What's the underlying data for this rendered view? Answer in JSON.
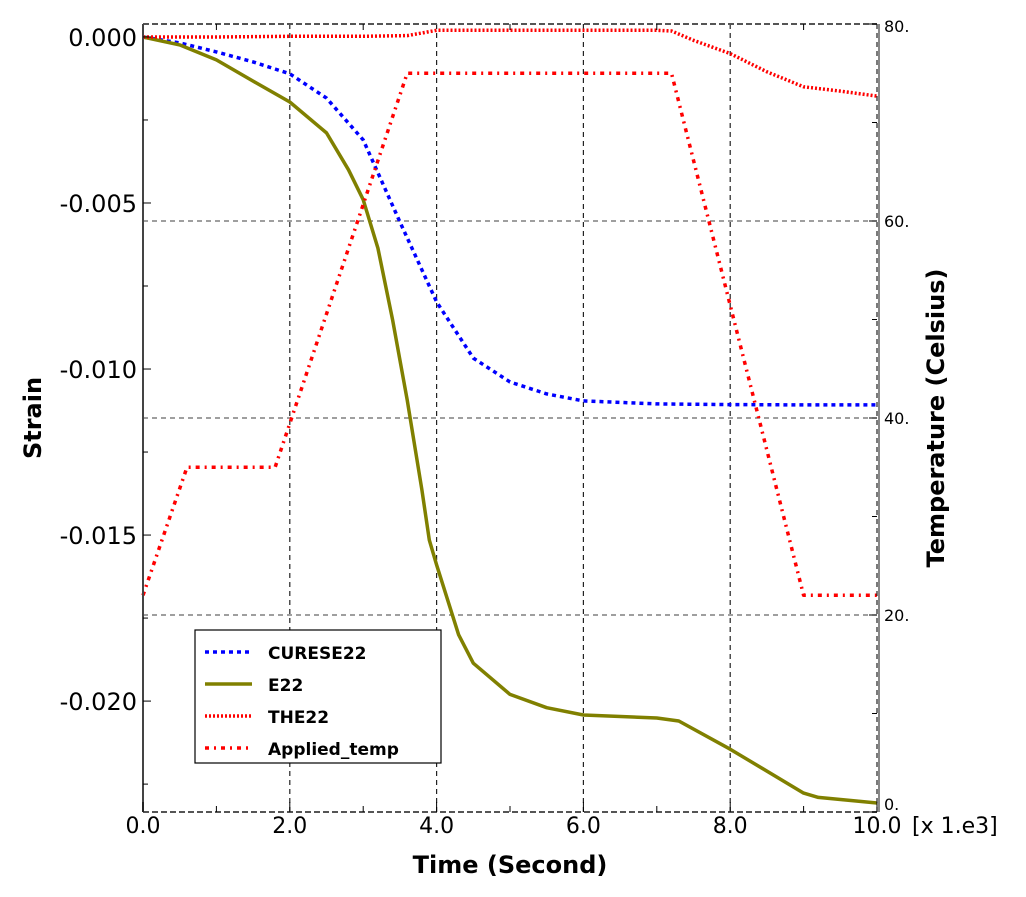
{
  "chart_data": {
    "type": "line",
    "title": "",
    "xlabel": "Time (Second)",
    "x_multiplier_label": "[x 1.e3]",
    "ylabel": "Strain",
    "y2label": "Temperature (Celsius)",
    "xlim": [
      0,
      10
    ],
    "ylim": [
      -0.02334,
      0.00039
    ],
    "y2lim": [
      0,
      80
    ],
    "grid": true,
    "legend_position": "bottom-left",
    "x_ticks": [
      {
        "value": 0,
        "label": "0.0"
      },
      {
        "value": 2,
        "label": "2.0"
      },
      {
        "value": 4,
        "label": "4.0"
      },
      {
        "value": 6,
        "label": "6.0"
      },
      {
        "value": 8,
        "label": "8.0"
      },
      {
        "value": 10,
        "label": "10.0"
      }
    ],
    "y_ticks": [
      {
        "value": 0.0,
        "label": "0.000"
      },
      {
        "value": -0.005,
        "label": "-0.005"
      },
      {
        "value": -0.01,
        "label": "-0.010"
      },
      {
        "value": -0.015,
        "label": "-0.015"
      },
      {
        "value": -0.02,
        "label": "-0.020"
      }
    ],
    "y2_ticks": [
      {
        "value": 0,
        "label": "0."
      },
      {
        "value": 20,
        "label": "20."
      },
      {
        "value": 40,
        "label": "40."
      },
      {
        "value": 60,
        "label": "60."
      },
      {
        "value": 80,
        "label": "80."
      }
    ],
    "series": [
      {
        "name": "CURESE22",
        "axis": "left",
        "color": "#0000ff",
        "style": "dotted",
        "x": [
          0,
          0.5,
          1.0,
          1.5,
          2.0,
          2.5,
          3.0,
          3.5,
          4.0,
          4.5,
          5.0,
          5.5,
          6.0,
          7.0,
          8.0,
          9.0,
          10.0
        ],
        "values": [
          0,
          -0.00018,
          -0.00045,
          -0.00075,
          -0.00111,
          -0.00184,
          -0.0031,
          -0.00557,
          -0.00798,
          -0.00967,
          -0.01039,
          -0.01075,
          -0.01096,
          -0.01105,
          -0.01107,
          -0.01108,
          -0.01108
        ]
      },
      {
        "name": "E22",
        "axis": "left",
        "color": "#808000",
        "style": "solid",
        "x": [
          0,
          0.5,
          1.0,
          1.5,
          2.0,
          2.5,
          2.8,
          3.0,
          3.2,
          3.4,
          3.6,
          3.8,
          3.9,
          4.0,
          4.3,
          4.5,
          5.0,
          5.5,
          6.0,
          7.0,
          7.3,
          8.0,
          9.0,
          9.2,
          10.0
        ],
        "values": [
          0,
          -0.00024,
          -0.00069,
          -0.00133,
          -0.00196,
          -0.00289,
          -0.004,
          -0.0049,
          -0.00636,
          -0.00852,
          -0.01093,
          -0.01364,
          -0.01515,
          -0.0159,
          -0.018,
          -0.01886,
          -0.0198,
          -0.0202,
          -0.02042,
          -0.02051,
          -0.0206,
          -0.02145,
          -0.02277,
          -0.0229,
          -0.02307
        ]
      },
      {
        "name": "THE22",
        "axis": "left",
        "color": "#ff0000",
        "style": "fine-dotted",
        "x": [
          0,
          1.0,
          2.0,
          3.0,
          3.6,
          3.8,
          4.0,
          5.0,
          6.0,
          7.0,
          7.2,
          7.5,
          8.0,
          8.5,
          9.0,
          9.5,
          10.0
        ],
        "values": [
          0,
          0,
          2e-05,
          2e-05,
          4e-05,
          0.00012,
          0.0002,
          0.0002,
          0.0002,
          0.0002,
          0.00018,
          -0.0001,
          -0.0005,
          -0.00105,
          -0.0015,
          -0.00163,
          -0.00178
        ]
      },
      {
        "name": "Applied_temp",
        "axis": "right",
        "color": "#ff0000",
        "style": "dash-dot",
        "x": [
          0,
          0.6,
          1.8,
          3.6,
          7.2,
          9.0,
          10.0
        ],
        "values": [
          22,
          35,
          35,
          75,
          75,
          22,
          22
        ]
      }
    ]
  }
}
